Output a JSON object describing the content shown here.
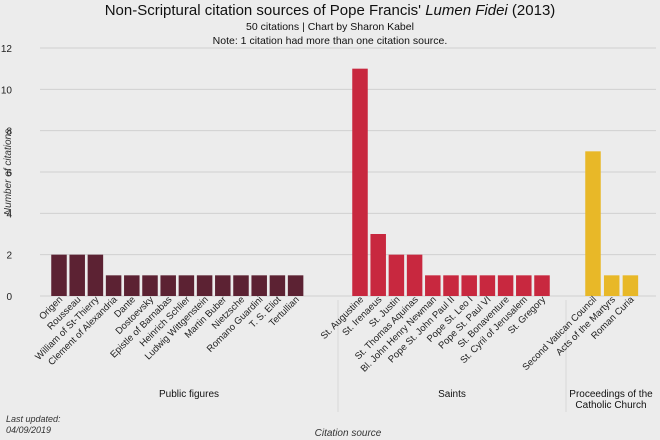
{
  "title_main": "Non-Scriptural citation sources of Pope Francis' ",
  "title_italic": "Lumen Fidei",
  "title_tail": " (2013)",
  "subtitle": "50 citations | Chart by Sharon Kabel",
  "note": "Note: 1 citation had more than one citation source.",
  "last_updated_label": "Last updated:",
  "last_updated_date": "04/09/2019",
  "chart_data": {
    "type": "bar",
    "ylabel": "Number of citations",
    "xlabel": "Citation source",
    "ylim": [
      0,
      12
    ],
    "yticks": [
      0,
      2,
      4,
      6,
      8,
      10,
      12
    ],
    "grid": true,
    "groups": [
      {
        "name": "Public figures",
        "color": "#5c2233",
        "categories": [
          "Origen",
          "Rousseau",
          "William of St-Thierry",
          "Clement of Alexandria",
          "Dante",
          "Dostoevsky",
          "Epistle of Barnabas",
          "Heinrich Schlier",
          "Ludwig Wittgenstein",
          "Martin Buber",
          "Nietzsche",
          "Romano Guardini",
          "T. S. Eliot",
          "Tertullian"
        ],
        "values": [
          2,
          2,
          2,
          1,
          1,
          1,
          1,
          1,
          1,
          1,
          1,
          1,
          1,
          1
        ]
      },
      {
        "name": "Saints",
        "color": "#c8283f",
        "categories": [
          "St. Augustine",
          "St. Irenaeus",
          "St. Justin",
          "St. Thomas Aquinas",
          "Bl. John Henry Newman",
          "Pope St. John Paul II",
          "Pope St. Leo I",
          "Pope St. Paul VI",
          "St. Bonaventure",
          "St. Cyril of Jerusalem",
          "St. Gregory"
        ],
        "values": [
          11,
          3,
          2,
          2,
          1,
          1,
          1,
          1,
          1,
          1,
          1
        ]
      },
      {
        "name": "Proceedings of the Catholic Church",
        "name_lines": [
          "Proceedings of the",
          "Catholic Church"
        ],
        "color": "#e8b828",
        "categories": [
          "Second Vatican Council",
          "Acts of the Martyrs",
          "Roman Curia"
        ],
        "values": [
          7,
          1,
          1
        ]
      }
    ]
  }
}
